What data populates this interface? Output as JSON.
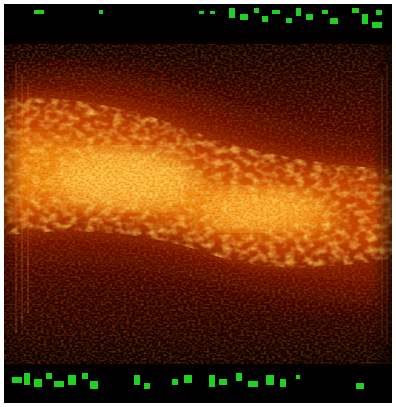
{
  "image": {
    "kind": "thermal-speckle-scan",
    "colormap": "hot",
    "colors": {
      "background": "#000000",
      "dark_red": "#3a0600",
      "mid_red": "#8a1a00",
      "orange": "#d85a00",
      "hot": "#ffb030",
      "highlight": "#ffe89a",
      "overlay_text": "#1fd21f"
    },
    "overlay": {
      "top_glyphs_note": "",
      "bottom_glyphs_note": ""
    }
  }
}
